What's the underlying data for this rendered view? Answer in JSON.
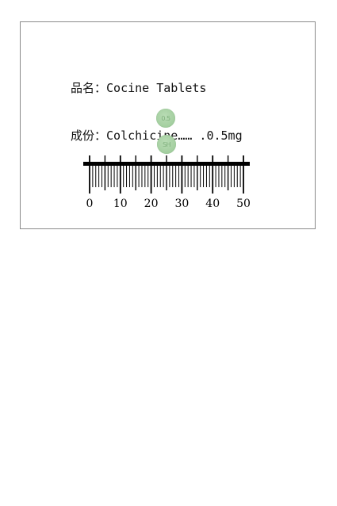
{
  "product": {
    "name_label": "品名：",
    "name_value": "Cocine Tablets",
    "ingredient_label": "成份：",
    "ingredient_value": "Colchicine…… .0.5mg"
  },
  "tablets": [
    {
      "imprint": "0.5"
    },
    {
      "imprint": "SH"
    }
  ],
  "ruler": {
    "labels": [
      "0",
      "10",
      "20",
      "30",
      "40",
      "50"
    ],
    "unit_max": 50
  },
  "colors": {
    "tablet": "#a6d0a2",
    "ruler": "#000000"
  }
}
